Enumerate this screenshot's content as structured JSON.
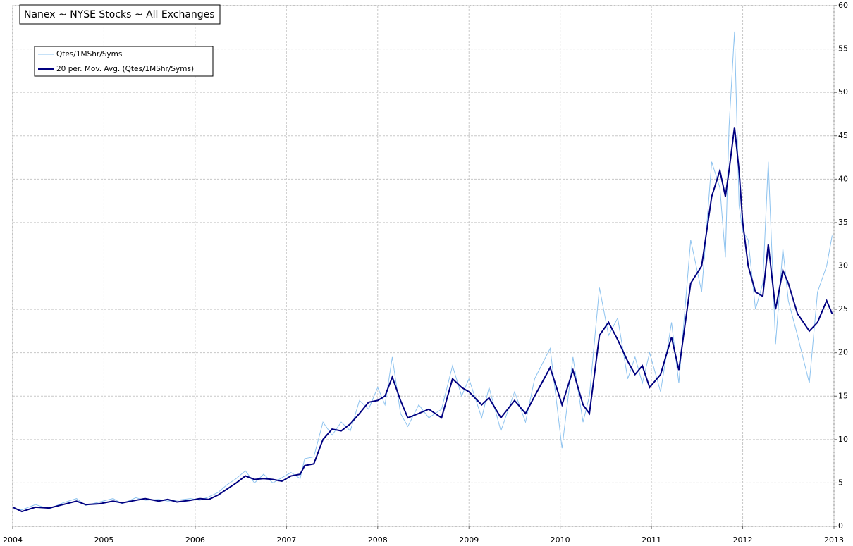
{
  "chart_data": {
    "type": "line",
    "title": "Nanex ~ NYSE Stocks ~ All Exchanges",
    "x": [
      2004.0,
      2004.1,
      2004.25,
      2004.4,
      2004.55,
      2004.7,
      2004.8,
      2004.95,
      2005.1,
      2005.2,
      2005.35,
      2005.45,
      2005.6,
      2005.7,
      2005.8,
      2005.95,
      2006.05,
      2006.15,
      2006.25,
      2006.35,
      2006.45,
      2006.55,
      2006.65,
      2006.75,
      2006.85,
      2006.95,
      2007.05,
      2007.15,
      2007.2,
      2007.3,
      2007.4,
      2007.5,
      2007.6,
      2007.7,
      2007.8,
      2007.9,
      2008.0,
      2008.08,
      2008.16,
      2008.25,
      2008.33,
      2008.45,
      2008.56,
      2008.7,
      2008.82,
      2008.92,
      2009.0,
      2009.14,
      2009.22,
      2009.35,
      2009.5,
      2009.62,
      2009.72,
      2009.89,
      2010.02,
      2010.14,
      2010.25,
      2010.32,
      2010.43,
      2010.53,
      2010.63,
      2010.74,
      2010.82,
      2010.9,
      2010.98,
      2011.1,
      2011.22,
      2011.3,
      2011.43,
      2011.55,
      2011.66,
      2011.75,
      2011.81,
      2011.85,
      2011.91,
      2011.96,
      2012.0,
      2012.06,
      2012.14,
      2012.22,
      2012.28,
      2012.36,
      2012.44,
      2012.5,
      2012.6,
      2012.73,
      2012.82,
      2012.92,
      2012.98
    ],
    "series": [
      {
        "name": "Qtes/1MShr/Syms",
        "color": "#8ec3ef",
        "width": 1,
        "values": [
          2.0,
          1.9,
          2.5,
          2.0,
          2.7,
          3.2,
          2.4,
          2.8,
          3.2,
          2.6,
          3.3,
          3.0,
          3.1,
          2.9,
          3.0,
          3.2,
          3.0,
          3.4,
          3.9,
          4.8,
          5.5,
          6.4,
          5.0,
          6.0,
          5.0,
          5.6,
          6.2,
          5.5,
          7.8,
          8.0,
          12.0,
          10.5,
          12.0,
          11.0,
          14.5,
          13.5,
          16.0,
          14.0,
          19.5,
          13.0,
          11.5,
          14.0,
          12.5,
          13.5,
          18.5,
          15.0,
          17.0,
          12.5,
          16.0,
          11.0,
          15.5,
          12.0,
          17.0,
          20.5,
          9.0,
          19.5,
          12.0,
          15.0,
          27.5,
          22.0,
          24.0,
          17.0,
          19.5,
          16.5,
          20.0,
          15.5,
          23.5,
          16.5,
          33.0,
          27.0,
          42.0,
          39.0,
          31.0,
          46.0,
          57.0,
          37.0,
          34.0,
          33.0,
          25.0,
          28.0,
          42.0,
          21.0,
          32.0,
          26.0,
          22.0,
          16.5,
          27.0,
          30.0,
          33.5
        ]
      },
      {
        "name": "20 per. Mov. Avg. (Qtes/1MShr/Syms)",
        "color": "#000080",
        "width": 2,
        "values": [
          2.2,
          1.7,
          2.2,
          2.1,
          2.5,
          2.9,
          2.5,
          2.6,
          2.9,
          2.7,
          3.0,
          3.2,
          2.9,
          3.1,
          2.8,
          3.0,
          3.2,
          3.1,
          3.6,
          4.3,
          5.0,
          5.8,
          5.4,
          5.5,
          5.4,
          5.2,
          5.8,
          6.0,
          7.0,
          7.2,
          10.0,
          11.2,
          11.0,
          11.8,
          13.0,
          14.3,
          14.5,
          15.0,
          17.2,
          14.5,
          12.5,
          13.0,
          13.5,
          12.5,
          17.0,
          16.0,
          15.5,
          14.0,
          14.8,
          12.5,
          14.5,
          13.0,
          15.0,
          18.3,
          14.0,
          18.0,
          14.0,
          13.0,
          22.0,
          23.5,
          21.5,
          19.0,
          17.5,
          18.5,
          16.0,
          17.5,
          21.8,
          18.0,
          28.0,
          30.0,
          38.0,
          41.0,
          38.0,
          41.0,
          46.0,
          41.0,
          35.0,
          30.0,
          27.0,
          26.5,
          32.5,
          25.0,
          29.5,
          28.0,
          24.5,
          22.5,
          23.5,
          26.0,
          24.5
        ]
      }
    ],
    "xlim": [
      2004,
      2013
    ],
    "xticks": [
      2004,
      2005,
      2006,
      2007,
      2008,
      2009,
      2010,
      2011,
      2012,
      2013
    ],
    "ylim": [
      0,
      60
    ],
    "yticks": [
      0,
      5,
      10,
      15,
      20,
      25,
      30,
      35,
      40,
      45,
      50,
      55,
      60
    ],
    "grid": true,
    "legend": "upper-left"
  }
}
